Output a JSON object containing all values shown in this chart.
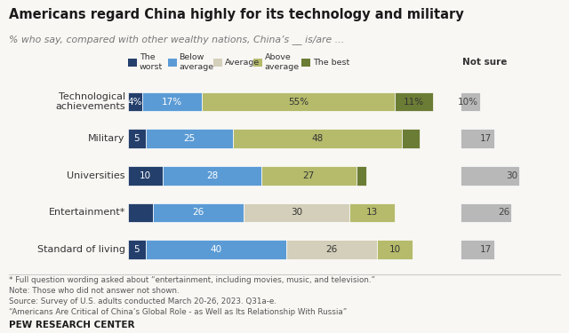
{
  "title": "Americans regard China highly for its technology and military",
  "subtitle": "% who say, compared with other wealthy nations, China’s __ is/are ...",
  "categories": [
    "Technological\nachievements",
    "Military",
    "Universities",
    "Entertainment*",
    "Standard of living"
  ],
  "stacked_data": [
    [
      4,
      17,
      0,
      55,
      11
    ],
    [
      5,
      25,
      0,
      48,
      5
    ],
    [
      10,
      28,
      0,
      27,
      3
    ],
    [
      7,
      26,
      30,
      13,
      0
    ],
    [
      5,
      40,
      26,
      10,
      0
    ]
  ],
  "not_sure": [
    10,
    17,
    30,
    26,
    17
  ],
  "colors": [
    "#243f6b",
    "#5b9bd5",
    "#d4cfba",
    "#b5bb6b",
    "#6b7c35"
  ],
  "not_sure_color": "#b8b8b8",
  "legend_labels": [
    "The worst",
    "Below\naverage",
    "Average",
    "Above\naverage",
    "The best"
  ],
  "seg_labels": [
    [
      "4%",
      "5",
      "10",
      "",
      "5"
    ],
    [
      "17%",
      "25",
      "28",
      "26",
      "40"
    ],
    [
      "",
      "",
      "",
      "30",
      "26"
    ],
    [
      "55%",
      "48",
      "27",
      "13",
      "10"
    ],
    [
      "11%",
      "",
      "",
      "",
      ""
    ]
  ],
  "footnotes": [
    "* Full question wording asked about “entertainment, including movies, music, and television.”",
    "Note: Those who did not answer not shown.",
    "Source: Survey of U.S. adults conducted March 20-26, 2023. Q31a-e.",
    "“Americans Are Critical of China’s Global Role - as Well as Its Relationship With Russia”"
  ],
  "pew_label": "PEW RESEARCH CENTER",
  "background_color": "#f9f7f4"
}
